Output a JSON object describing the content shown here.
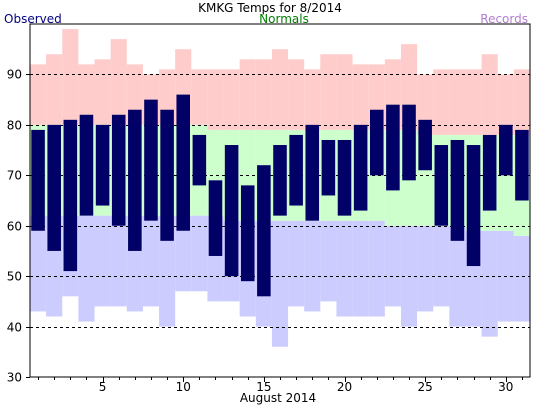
{
  "chart_data": {
    "type": "bar",
    "title": "KMKG Temps for 8/2014",
    "xlabel": "August 2014",
    "ylabel": "",
    "legend": {
      "observed": "Observed",
      "normals": "Normals",
      "records": "Records"
    },
    "colors": {
      "observed": "#000066",
      "normals": "#ccffcc",
      "records_high": "#ffcccc",
      "records_low": "#ccccff",
      "observed_text": "#000080",
      "normals_text": "#008000",
      "records_text": "#b07fcf"
    },
    "ylim": [
      30,
      100
    ],
    "xlim": [
      0.5,
      31.5
    ],
    "yticks": [
      30,
      40,
      50,
      60,
      70,
      80,
      90
    ],
    "xticks": [
      5,
      10,
      15,
      20,
      25,
      30
    ],
    "grid_lines": [
      40,
      50,
      60,
      70,
      80,
      90
    ],
    "days": [
      1,
      2,
      3,
      4,
      5,
      6,
      7,
      8,
      9,
      10,
      11,
      12,
      13,
      14,
      15,
      16,
      17,
      18,
      19,
      20,
      21,
      22,
      23,
      24,
      25,
      26,
      27,
      28,
      29,
      30,
      31
    ],
    "observed_high": [
      79,
      80,
      81,
      82,
      80,
      82,
      83,
      85,
      83,
      86,
      78,
      69,
      76,
      68,
      72,
      76,
      78,
      80,
      77,
      77,
      80,
      83,
      84,
      84,
      81,
      76,
      77,
      76,
      78,
      80,
      79
    ],
    "observed_low": [
      59,
      55,
      51,
      62,
      64,
      60,
      55,
      61,
      57,
      59,
      68,
      54,
      50,
      49,
      46,
      62,
      64,
      61,
      66,
      62,
      63,
      70,
      67,
      69,
      71,
      60,
      57,
      52,
      63,
      70,
      65
    ],
    "normal_high": [
      80,
      80,
      80,
      80,
      80,
      80,
      80,
      80,
      80,
      80,
      80,
      79,
      79,
      79,
      79,
      79,
      79,
      79,
      79,
      79,
      79,
      79,
      79,
      79,
      78,
      78,
      78,
      78,
      78,
      78,
      78
    ],
    "normal_low": [
      62,
      62,
      62,
      62,
      62,
      62,
      62,
      62,
      62,
      62,
      62,
      62,
      61,
      61,
      61,
      61,
      61,
      61,
      61,
      61,
      61,
      61,
      60,
      60,
      60,
      60,
      60,
      59,
      59,
      59,
      58
    ],
    "record_high": [
      92,
      94,
      99,
      92,
      93,
      97,
      92,
      90,
      91,
      95,
      91,
      91,
      91,
      93,
      93,
      95,
      93,
      91,
      94,
      94,
      92,
      92,
      93,
      96,
      90,
      91,
      91,
      91,
      94,
      90,
      91
    ],
    "record_low": [
      43,
      42,
      46,
      41,
      44,
      44,
      43,
      44,
      40,
      47,
      47,
      45,
      45,
      42,
      40,
      36,
      44,
      43,
      45,
      42,
      42,
      42,
      44,
      40,
      43,
      44,
      40,
      40,
      38,
      41,
      41
    ]
  }
}
